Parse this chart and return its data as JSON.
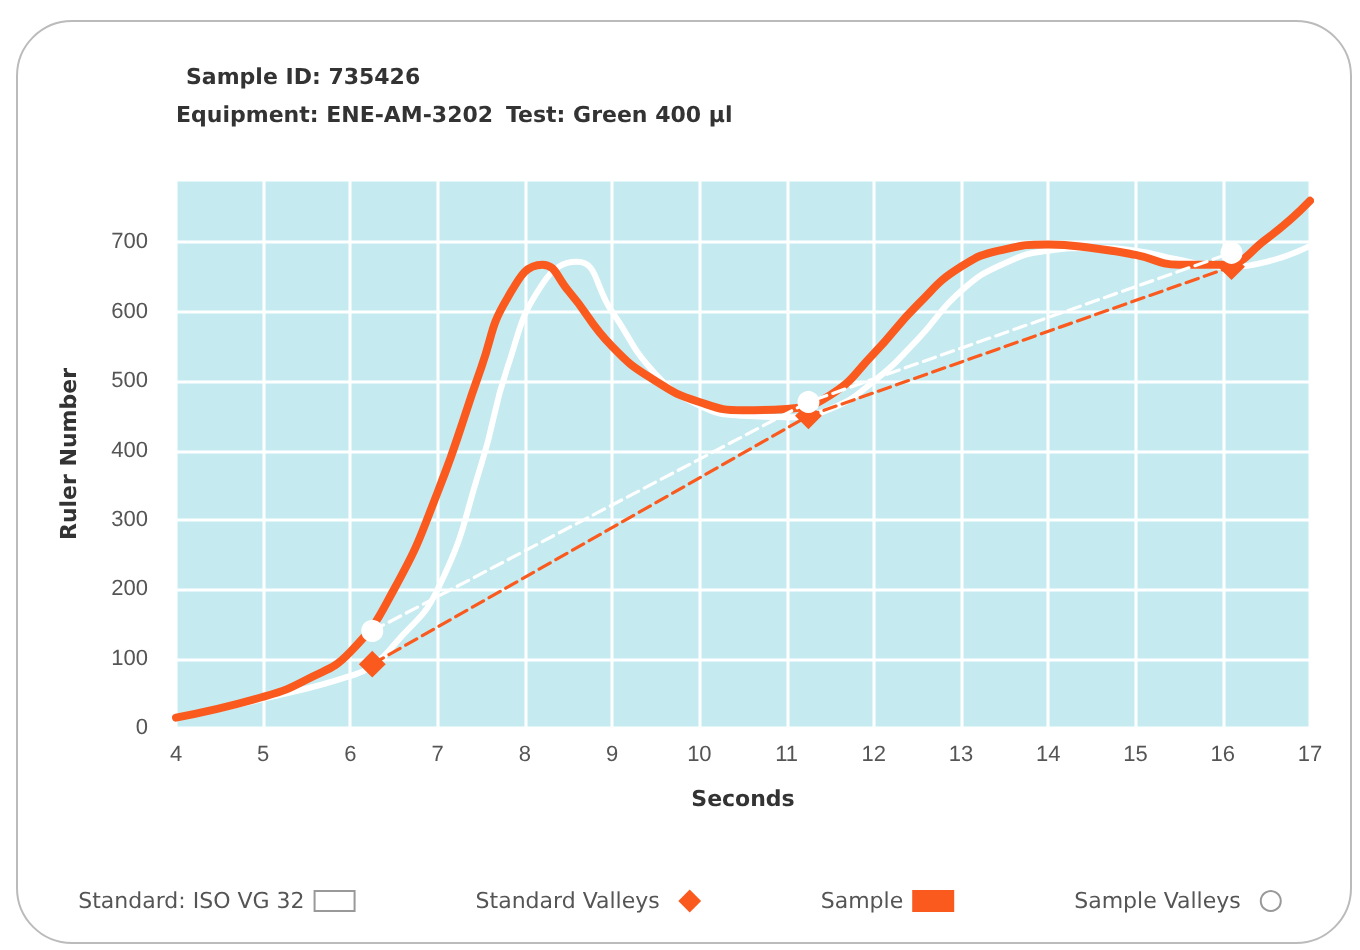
{
  "chart_data": {
    "type": "line",
    "title": "Sample ID: 735426",
    "subtitle": "Equipment: ENE-AM-3202",
    "annotations": [
      "Test: Green 400 µl"
    ],
    "xlabel": "Seconds",
    "ylabel": "Ruler Number",
    "xlim": [
      4,
      17
    ],
    "xticks": [
      4,
      5,
      6,
      7,
      8,
      9,
      10,
      11,
      12,
      13,
      14,
      15,
      16,
      17
    ],
    "ylim": [
      0,
      790
    ],
    "yticks": [
      0,
      100,
      200,
      300,
      400,
      500,
      600,
      700
    ],
    "grid": true,
    "legend": "bottom",
    "series": [
      {
        "name": "Standard: ISO VG 32",
        "color": "#ffffff",
        "marker": "none",
        "line_style": "solid",
        "x": [
          4,
          5,
          6,
          6.3,
          6.5,
          7,
          7.5,
          7.8,
          8.2,
          8.6,
          9,
          9.5,
          10,
          10.5,
          11,
          11.5,
          12,
          12.5,
          13,
          13.5,
          14,
          14.5,
          15,
          15.5,
          16,
          16.5,
          17
        ],
        "values": [
          15,
          42,
          75,
          95,
          120,
          200,
          380,
          520,
          640,
          672,
          600,
          510,
          465,
          450,
          448,
          460,
          500,
          560,
          630,
          670,
          688,
          692,
          688,
          675,
          665,
          672,
          695
        ]
      },
      {
        "name": "Standard Valleys",
        "color": "#fa5a1e",
        "marker": "diamond",
        "line_style": "dashed",
        "x": [
          6.25,
          11.25,
          16.1
        ],
        "values": [
          92,
          450,
          665
        ]
      },
      {
        "name": "Sample",
        "color": "#fa5a1e",
        "marker": "none",
        "line_style": "solid",
        "x": [
          4,
          5,
          5.5,
          6,
          6.5,
          7,
          7.5,
          7.8,
          8.2,
          8.5,
          9,
          9.5,
          10,
          10.5,
          11,
          11.5,
          12,
          12.5,
          13,
          13.5,
          14,
          14.5,
          15,
          15.5,
          16,
          16.5,
          17
        ],
        "values": [
          15,
          45,
          70,
          110,
          200,
          340,
          520,
          620,
          668,
          630,
          550,
          500,
          470,
          458,
          460,
          480,
          540,
          610,
          665,
          690,
          697,
          692,
          682,
          668,
          668,
          705,
          760
        ]
      },
      {
        "name": "Sample Valleys",
        "color": "#ffffff",
        "marker": "circle",
        "line_style": "dashed",
        "x": [
          6.25,
          11.25,
          16.1
        ],
        "values": [
          140,
          470,
          685
        ]
      }
    ]
  }
}
